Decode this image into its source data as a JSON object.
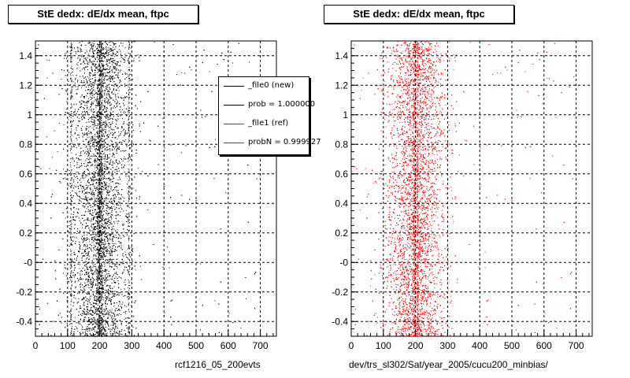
{
  "chart_data": [
    {
      "type": "scatter",
      "title": "StE dedx: dE/dx mean, ftpc",
      "xlabel": "rcf1216_05_200evts",
      "ylabel": "",
      "xlim": [
        0,
        750
      ],
      "ylim": [
        -0.5,
        1.5
      ],
      "x_ticks": [
        "0",
        "100",
        "200",
        "300",
        "400",
        "500",
        "600",
        "700"
      ],
      "y_ticks": [
        "-0.4",
        "-0.2",
        "-0",
        "0.2",
        "0.4",
        "0.6",
        "0.8",
        "1",
        "1.2",
        "1.4"
      ],
      "grid": true,
      "marker_color": "#000000",
      "distribution": {
        "x_center": 200,
        "x_spread": 45,
        "x_range": [
          0,
          340
        ],
        "sparse_tail_to": 700,
        "y_range": [
          -0.5,
          1.5
        ],
        "dense_lines_x": [
          110,
          195,
          200,
          205,
          290
        ]
      },
      "legend": {
        "placement": "top-right",
        "entries": [
          {
            "label": "_file0 (new)",
            "color": "#000000"
          },
          {
            "label": "prob = 1.000000",
            "color": "#000000"
          },
          {
            "label": "_file1 (ref)",
            "color": "#ff0000"
          },
          {
            "label": "probN = 0.999927",
            "color": "#ff0000"
          }
        ]
      }
    },
    {
      "type": "scatter",
      "title": "StE dedx: dE/dx mean, ftpc",
      "xlabel": "dev/trs_sl302/Sat/year_2005/cucu200_minbias/",
      "ylabel": "",
      "xlim": [
        0,
        750
      ],
      "ylim": [
        -0.5,
        1.5
      ],
      "x_ticks": [
        "0",
        "100",
        "200",
        "300",
        "400",
        "500",
        "600",
        "700"
      ],
      "y_ticks": [
        "-0.4",
        "-0.2",
        "-0",
        "0.2",
        "0.4",
        "0.6",
        "0.8",
        "1",
        "1.2",
        "1.4"
      ],
      "grid": true,
      "marker_color": "#ff0000",
      "distribution": {
        "x_center": 200,
        "x_spread": 45,
        "x_range": [
          0,
          340
        ],
        "sparse_tail_to": 700,
        "y_range": [
          -0.5,
          1.5
        ],
        "dense_lines_x": [
          195,
          205
        ]
      }
    }
  ]
}
